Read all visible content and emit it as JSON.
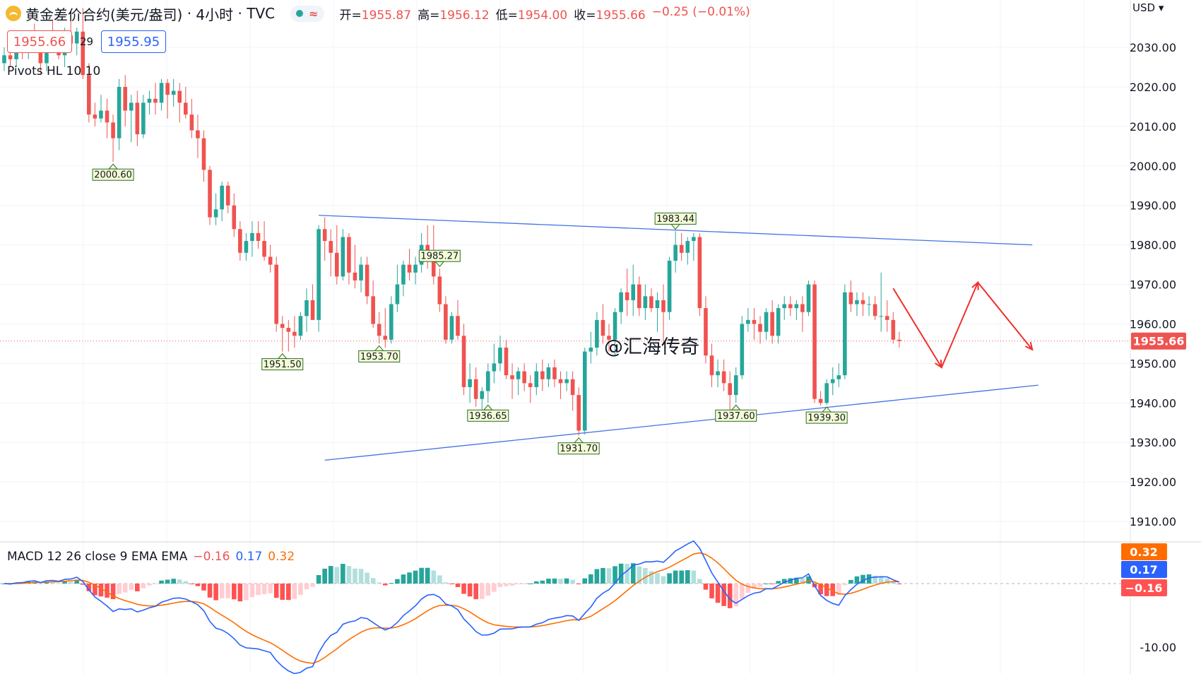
{
  "header": {
    "title": "黄金差价合约(美元/盎司)",
    "interval": "4小时",
    "source": "TVC",
    "ohlc": [
      {
        "label": "开=",
        "value": "1955.87"
      },
      {
        "label": "高=",
        "value": "1956.12"
      },
      {
        "label": "低=",
        "value": "1954.00"
      },
      {
        "label": "收=",
        "value": "1955.66"
      }
    ],
    "change": "−0.25 (−0.01%)",
    "status_symbol": "≈"
  },
  "quote": {
    "bid": "1955.66",
    "spread": "29",
    "ask": "1955.95"
  },
  "currency": "USD",
  "indicators": {
    "pivots_label": "Pivots HL 10 10",
    "macd_label": "MACD 12 26 close 9 EMA EMA",
    "macd_values": [
      "−0.16",
      "0.17",
      "0.32"
    ]
  },
  "watermark": "@汇海传奇",
  "colors": {
    "up": "#26a69a",
    "down": "#ef5350",
    "trend": "#4472e3",
    "arrow": "#f0302c",
    "macd": "#2962ff",
    "signal": "#ff6d00"
  },
  "chart_data": {
    "type": "candlestick",
    "price_axis": {
      "ticks": [
        "2030.00",
        "2020.00",
        "2010.00",
        "2000.00",
        "1990.00",
        "1980.00",
        "1970.00",
        "1960.00",
        "1950.00",
        "1940.00",
        "1930.00",
        "1920.00",
        "1910.00"
      ],
      "ylim": [
        1905,
        2042
      ],
      "current_price": "1955.66"
    },
    "candles": [
      [
        2026,
        2030,
        2024,
        2028
      ],
      [
        2028,
        2031,
        2025,
        2027
      ],
      [
        2027,
        2032,
        2025,
        2030
      ],
      [
        2030,
        2033,
        2027,
        2029
      ],
      [
        2029,
        2034,
        2027,
        2031
      ],
      [
        2031,
        2036,
        2029,
        2030
      ],
      [
        2030,
        2033,
        2023,
        2026
      ],
      [
        2026,
        2034,
        2024,
        2032
      ],
      [
        2032,
        2037,
        2029,
        2030
      ],
      [
        2030,
        2032,
        2027,
        2028
      ],
      [
        2028,
        2035,
        2025,
        2033
      ],
      [
        2033,
        2038,
        2030,
        2031
      ],
      [
        2031,
        2035,
        2028,
        2034
      ],
      [
        2034,
        2040,
        2022,
        2023
      ],
      [
        2023,
        2026,
        2011,
        2013
      ],
      [
        2013,
        2016,
        2010,
        2012
      ],
      [
        2012,
        2018,
        2011,
        2014
      ],
      [
        2014,
        2017,
        2007,
        2011
      ],
      [
        2011,
        2013,
        2001,
        2007
      ],
      [
        2007,
        2022,
        2004,
        2020
      ],
      [
        2020,
        2023,
        2010,
        2014
      ],
      [
        2014,
        2018,
        2006,
        2016
      ],
      [
        2016,
        2019,
        2005,
        2008
      ],
      [
        2008,
        2018,
        2007,
        2016
      ],
      [
        2016,
        2019,
        2013,
        2017
      ],
      [
        2017,
        2021,
        2013,
        2016
      ],
      [
        2016,
        2022,
        2014,
        2021
      ],
      [
        2021,
        2022,
        2012,
        2018
      ],
      [
        2018,
        2022,
        2015,
        2019
      ],
      [
        2019,
        2021,
        2011,
        2016
      ],
      [
        2016,
        2020,
        2012,
        2013
      ],
      [
        2013,
        2017,
        2007,
        2009
      ],
      [
        2009,
        2013,
        2002,
        2007
      ],
      [
        2007,
        2009,
        1996,
        1999
      ],
      [
        1999,
        2000,
        1985,
        1987
      ],
      [
        1987,
        1993,
        1985,
        1989
      ],
      [
        1989,
        1996,
        1986,
        1995
      ],
      [
        1995,
        1996,
        1988,
        1990
      ],
      [
        1990,
        1993,
        1982,
        1984
      ],
      [
        1984,
        1986,
        1976,
        1978
      ],
      [
        1978,
        1983,
        1976,
        1981
      ],
      [
        1981,
        1986,
        1977,
        1983
      ],
      [
        1983,
        1986,
        1979,
        1981
      ],
      [
        1981,
        1986,
        1976,
        1977
      ],
      [
        1977,
        1980,
        1973,
        1975
      ],
      [
        1975,
        1977,
        1958,
        1960
      ],
      [
        1960,
        1962,
        1953,
        1959
      ],
      [
        1959,
        1961,
        1953,
        1958
      ],
      [
        1958,
        1962,
        1954,
        1957
      ],
      [
        1957,
        1963,
        1956,
        1962
      ],
      [
        1962,
        1969,
        1958,
        1966
      ],
      [
        1966,
        1970,
        1962,
        1961
      ],
      [
        1961,
        1985,
        1958,
        1984
      ],
      [
        1984,
        1987,
        1976,
        1981
      ],
      [
        1981,
        1984,
        1972,
        1978
      ],
      [
        1978,
        1985,
        1970,
        1972
      ],
      [
        1972,
        1984,
        1971,
        1982
      ],
      [
        1982,
        1983,
        1970,
        1973
      ],
      [
        1973,
        1980,
        1969,
        1971
      ],
      [
        1971,
        1977,
        1968,
        1975
      ],
      [
        1975,
        1977,
        1965,
        1967
      ],
      [
        1967,
        1971,
        1959,
        1960
      ],
      [
        1960,
        1963,
        1955,
        1957
      ],
      [
        1957,
        1964,
        1954,
        1956
      ],
      [
        1956,
        1967,
        1955,
        1965
      ],
      [
        1965,
        1975,
        1963,
        1970
      ],
      [
        1970,
        1976,
        1967,
        1975
      ],
      [
        1975,
        1979,
        1971,
        1973
      ],
      [
        1973,
        1977,
        1970,
        1975
      ],
      [
        1975,
        1983,
        1973,
        1980
      ],
      [
        1980,
        1985,
        1974,
        1977
      ],
      [
        1977,
        1985,
        1970,
        1972
      ],
      [
        1972,
        1974,
        1963,
        1965
      ],
      [
        1965,
        1967,
        1955,
        1956
      ],
      [
        1956,
        1963,
        1955,
        1962
      ],
      [
        1962,
        1966,
        1956,
        1957
      ],
      [
        1957,
        1960,
        1942,
        1944
      ],
      [
        1944,
        1950,
        1940,
        1946
      ],
      [
        1946,
        1949,
        1939,
        1941
      ],
      [
        1941,
        1944,
        1936.65,
        1943
      ],
      [
        1943,
        1950,
        1940,
        1948
      ],
      [
        1948,
        1955,
        1945,
        1950
      ],
      [
        1950,
        1957,
        1948,
        1954
      ],
      [
        1954,
        1956,
        1946,
        1947
      ],
      [
        1947,
        1950,
        1941,
        1946
      ],
      [
        1946,
        1949,
        1942,
        1948
      ],
      [
        1948,
        1950,
        1943,
        1945
      ],
      [
        1945,
        1947,
        1940,
        1944
      ],
      [
        1944,
        1950,
        1942,
        1948
      ],
      [
        1948,
        1951,
        1943,
        1946
      ],
      [
        1946,
        1950,
        1944,
        1949
      ],
      [
        1949,
        1951,
        1944,
        1946
      ],
      [
        1946,
        1948,
        1941,
        1945
      ],
      [
        1945,
        1948,
        1943,
        1946
      ],
      [
        1946,
        1948,
        1938,
        1942
      ],
      [
        1942,
        1944,
        1931.7,
        1933
      ],
      [
        1933,
        1954,
        1932,
        1953
      ],
      [
        1953,
        1958,
        1950,
        1954
      ],
      [
        1954,
        1963,
        1952,
        1961
      ],
      [
        1961,
        1965,
        1955,
        1957
      ],
      [
        1957,
        1960,
        1953,
        1956
      ],
      [
        1956,
        1964,
        1952,
        1963
      ],
      [
        1963,
        1969,
        1960,
        1968
      ],
      [
        1968,
        1974,
        1962,
        1966
      ],
      [
        1966,
        1975,
        1962,
        1970
      ],
      [
        1970,
        1972,
        1962,
        1964
      ],
      [
        1964,
        1970,
        1961,
        1967
      ],
      [
        1967,
        1969,
        1963,
        1964
      ],
      [
        1964,
        1968,
        1958,
        1966
      ],
      [
        1966,
        1970,
        1955,
        1963
      ],
      [
        1963,
        1977,
        1961,
        1976
      ],
      [
        1976,
        1983.44,
        1973,
        1980
      ],
      [
        1980,
        1983,
        1976,
        1978
      ],
      [
        1978,
        1982,
        1975,
        1981
      ],
      [
        1981,
        1983,
        1976,
        1982
      ],
      [
        1982,
        1983,
        1962,
        1964
      ],
      [
        1964,
        1967,
        1950,
        1952
      ],
      [
        1952,
        1955,
        1944,
        1947
      ],
      [
        1947,
        1951,
        1944,
        1948
      ],
      [
        1948,
        1951,
        1943,
        1945
      ],
      [
        1945,
        1948,
        1937.6,
        1942
      ],
      [
        1942,
        1949,
        1940,
        1947
      ],
      [
        1947,
        1962,
        1946,
        1960
      ],
      [
        1960,
        1964,
        1958,
        1961
      ],
      [
        1961,
        1964,
        1956,
        1960
      ],
      [
        1960,
        1962,
        1955,
        1958
      ],
      [
        1958,
        1964,
        1956,
        1963
      ],
      [
        1963,
        1966,
        1955,
        1957
      ],
      [
        1957,
        1965,
        1955,
        1964
      ],
      [
        1964,
        1967,
        1961,
        1965
      ],
      [
        1965,
        1967,
        1962,
        1964
      ],
      [
        1964,
        1966,
        1961,
        1965
      ],
      [
        1965,
        1967,
        1958,
        1963
      ],
      [
        1963,
        1971,
        1962,
        1970
      ],
      [
        1970,
        1971,
        1940,
        1941
      ],
      [
        1941,
        1943,
        1939.3,
        1940
      ],
      [
        1940,
        1946,
        1939.5,
        1945
      ],
      [
        1945,
        1949,
        1942,
        1946
      ],
      [
        1946,
        1950,
        1944,
        1947
      ],
      [
        1947,
        1970,
        1946,
        1968
      ],
      [
        1968,
        1971,
        1963,
        1965
      ],
      [
        1965,
        1968,
        1962,
        1966
      ],
      [
        1966,
        1968,
        1962,
        1965
      ],
      [
        1965,
        1967,
        1962,
        1965
      ],
      [
        1965,
        1967,
        1961,
        1962
      ],
      [
        1962,
        1973,
        1958,
        1962
      ],
      [
        1962,
        1966,
        1958,
        1961
      ],
      [
        1961,
        1963,
        1955,
        1956
      ],
      [
        1956,
        1958,
        1954,
        1955.66
      ]
    ],
    "pivot_labels": [
      {
        "i": 18,
        "price": "2000.60",
        "side": "low"
      },
      {
        "i": 46,
        "price": "1951.50",
        "side": "low"
      },
      {
        "i": 62,
        "price": "1953.70",
        "side": "low"
      },
      {
        "i": 72,
        "price": "1985.27",
        "side": "high"
      },
      {
        "i": 80,
        "price": "1936.65",
        "side": "low"
      },
      {
        "i": 95,
        "price": "1931.70",
        "side": "low"
      },
      {
        "i": 111,
        "price": "1983.44",
        "side": "high"
      },
      {
        "i": 121,
        "price": "1937.60",
        "side": "low"
      },
      {
        "i": 136,
        "price": "1939.30",
        "side": "low"
      }
    ],
    "trendlines": [
      {
        "from": [
          52,
          1987.5
        ],
        "to": [
          170,
          1980
        ]
      },
      {
        "from": [
          53,
          1925.5
        ],
        "to": [
          171,
          1944.5
        ]
      }
    ],
    "forecast_arrows": [
      [
        147,
        1969
      ],
      [
        155,
        1949
      ],
      [
        161,
        1970.5
      ],
      [
        170,
        1953.5
      ]
    ],
    "macd": {
      "axis_ticks": [
        "-10.00"
      ],
      "ylim": [
        -14,
        6
      ],
      "labels": {
        "signal": "0.32",
        "macd": "0.17",
        "hist": "−0.16"
      }
    }
  }
}
